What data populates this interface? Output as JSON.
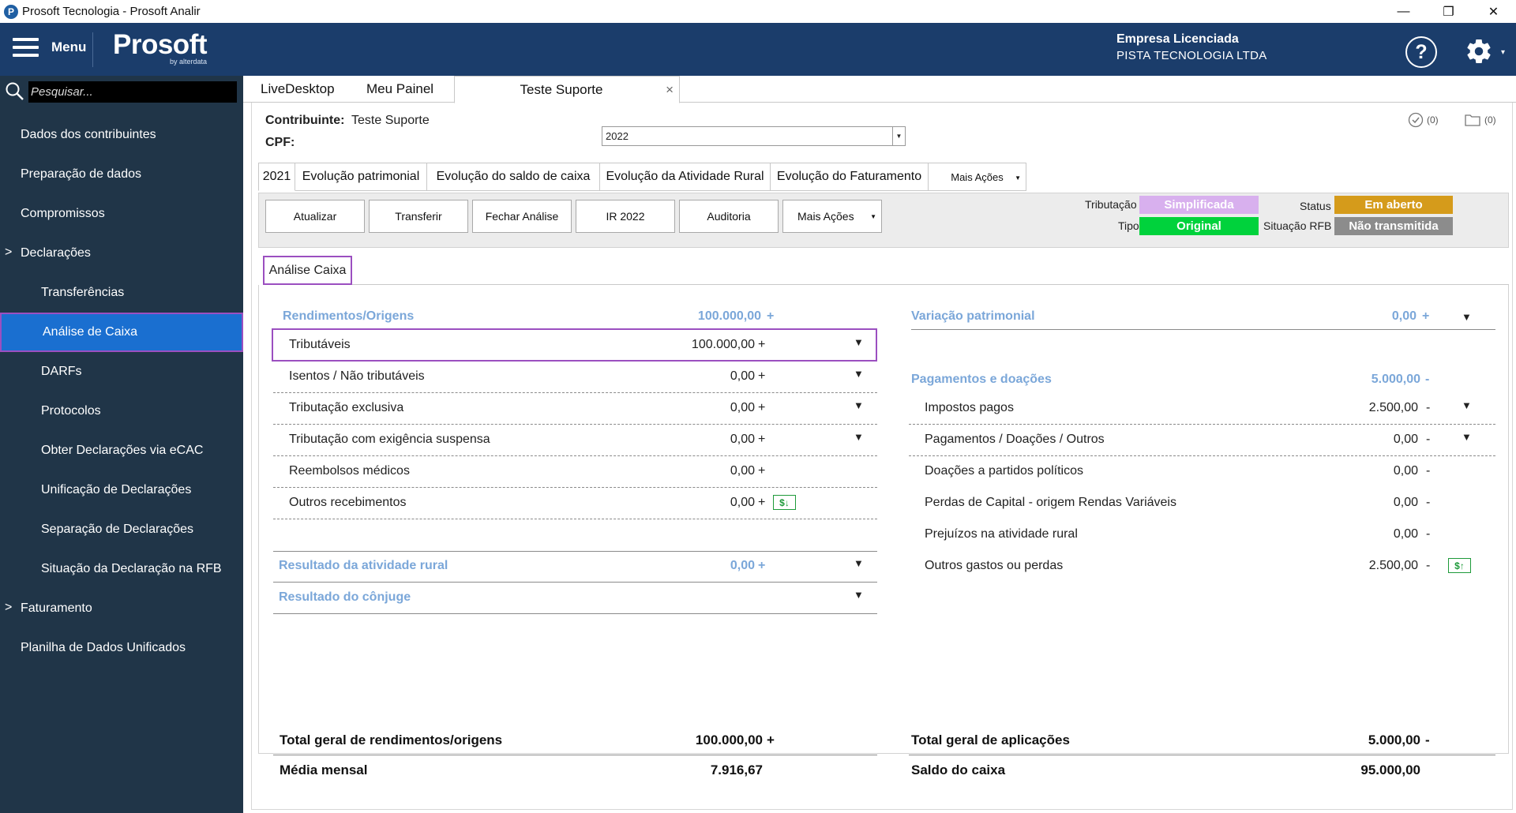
{
  "window": {
    "title": "Prosoft Tecnologia - Prosoft Analir",
    "icon_letter": "P",
    "minimize": "—",
    "maximize": "❐",
    "close": "✕"
  },
  "header": {
    "menu_label": "Menu",
    "brand": "Prosoft",
    "brand_sub": "by alterdata",
    "company_label": "Empresa Licenciada",
    "company_name": "PISTA TECNOLOGIA LTDA",
    "help": "?",
    "colors": {
      "bar": "#1b3d6b"
    }
  },
  "sidebar": {
    "search_placeholder": "Pesquisar...",
    "items": [
      {
        "label": "Dados dos contribuintes"
      },
      {
        "label": "Preparação de dados"
      },
      {
        "label": "Compromissos"
      },
      {
        "label": "Declarações",
        "chevron": ">"
      },
      {
        "label": "Transferências"
      },
      {
        "label": "Análise de Caixa"
      },
      {
        "label": "DARFs"
      },
      {
        "label": "Protocolos"
      },
      {
        "label": "Obter Declarações via eCAC"
      },
      {
        "label": "Unificação de Declarações"
      },
      {
        "label": "Separação de Declarações"
      },
      {
        "label": "Situação da Declaração na RFB"
      },
      {
        "label": "Faturamento",
        "chevron": ">"
      },
      {
        "label": "Planilha de Dados Unificados"
      }
    ]
  },
  "tabs": [
    {
      "label": "LiveDesktop"
    },
    {
      "label": "Meu Painel"
    },
    {
      "label": "Teste Suporte",
      "close": "×"
    }
  ],
  "contribuinte": {
    "label": "Contribuinte:",
    "value": "Teste Suporte",
    "cpf_label": "CPF:",
    "year": "2022",
    "check_count": "(0)",
    "folder_count": "(0)"
  },
  "subtabs": [
    {
      "label": "2021"
    },
    {
      "label": "Evolução patrimonial"
    },
    {
      "label": "Evolução do saldo de caixa"
    },
    {
      "label": "Evolução da Atividade Rural"
    },
    {
      "label": "Evolução do Faturamento"
    },
    {
      "label": "Mais Ações"
    }
  ],
  "toolbar": {
    "buttons": [
      "Atualizar",
      "Transferir",
      "Fechar Análise",
      "IR 2022",
      "Auditoria",
      "Mais Ações"
    ],
    "tributacao_label": "Tributação",
    "tributacao_value": "Simplificada",
    "tipo_label": "Tipo",
    "tipo_value": "Original",
    "status_label": "Status",
    "status_value": "Em aberto",
    "situacao_label": "Situação RFB",
    "situacao_value": "Não transmitida",
    "colors": {
      "simplificada": "#d8b0ee",
      "original": "#00d23c",
      "em_aberto": "#d59b1b",
      "nao_transmitida": "#8c8c8c"
    }
  },
  "analise_tab": "Análise Caixa",
  "left": {
    "header": {
      "label": "Rendimentos/Origens",
      "value": "100.000,00",
      "sign": "+"
    },
    "rows": [
      {
        "label": "Tributáveis",
        "value": "100.000,00",
        "sign": "+",
        "arrow": true
      },
      {
        "label": "Isentos / Não tributáveis",
        "value": "0,00",
        "sign": "+",
        "arrow": true
      },
      {
        "label": "Tributação exclusiva",
        "value": "0,00",
        "sign": "+",
        "arrow": true
      },
      {
        "label": "Tributação com exigência suspensa",
        "value": "0,00",
        "sign": "+",
        "arrow": true
      },
      {
        "label": "Reembolsos médicos",
        "value": "0,00",
        "sign": "+",
        "arrow": false
      },
      {
        "label": "Outros recebimentos",
        "value": "0,00",
        "sign": "+",
        "money": "$↓"
      }
    ],
    "rural": {
      "label": "Resultado da atividade rural",
      "value": "0,00",
      "sign": "+"
    },
    "conjuge": {
      "label": "Resultado do cônjuge"
    },
    "total_label": "Total geral de rendimentos/origens",
    "total_value": "100.000,00",
    "total_sign": "+",
    "media_label": "Média mensal",
    "media_value": "7.916,67"
  },
  "right": {
    "variacao": {
      "label": "Variação patrimonial",
      "value": "0,00",
      "sign": "+"
    },
    "header": {
      "label": "Pagamentos e doações",
      "value": "5.000,00",
      "sign": "-"
    },
    "rows": [
      {
        "label": "Impostos pagos",
        "value": "2.500,00",
        "sign": "-",
        "arrow": true
      },
      {
        "label": "Pagamentos / Doações / Outros",
        "value": "0,00",
        "sign": "-",
        "arrow": true
      },
      {
        "label": "Doações a partidos políticos",
        "value": "0,00",
        "sign": "-"
      },
      {
        "label": "Perdas de Capital - origem Rendas Variáveis",
        "value": "0,00",
        "sign": "-"
      },
      {
        "label": "Prejuízos na atividade rural",
        "value": "0,00",
        "sign": "-"
      },
      {
        "label": "Outros gastos ou perdas",
        "value": "2.500,00",
        "sign": "-",
        "money": "$↑"
      }
    ],
    "total_label": "Total geral de aplicações",
    "total_value": "5.000,00",
    "total_sign": "-",
    "saldo_label": "Saldo do caixa",
    "saldo_value": "95.000,00"
  }
}
